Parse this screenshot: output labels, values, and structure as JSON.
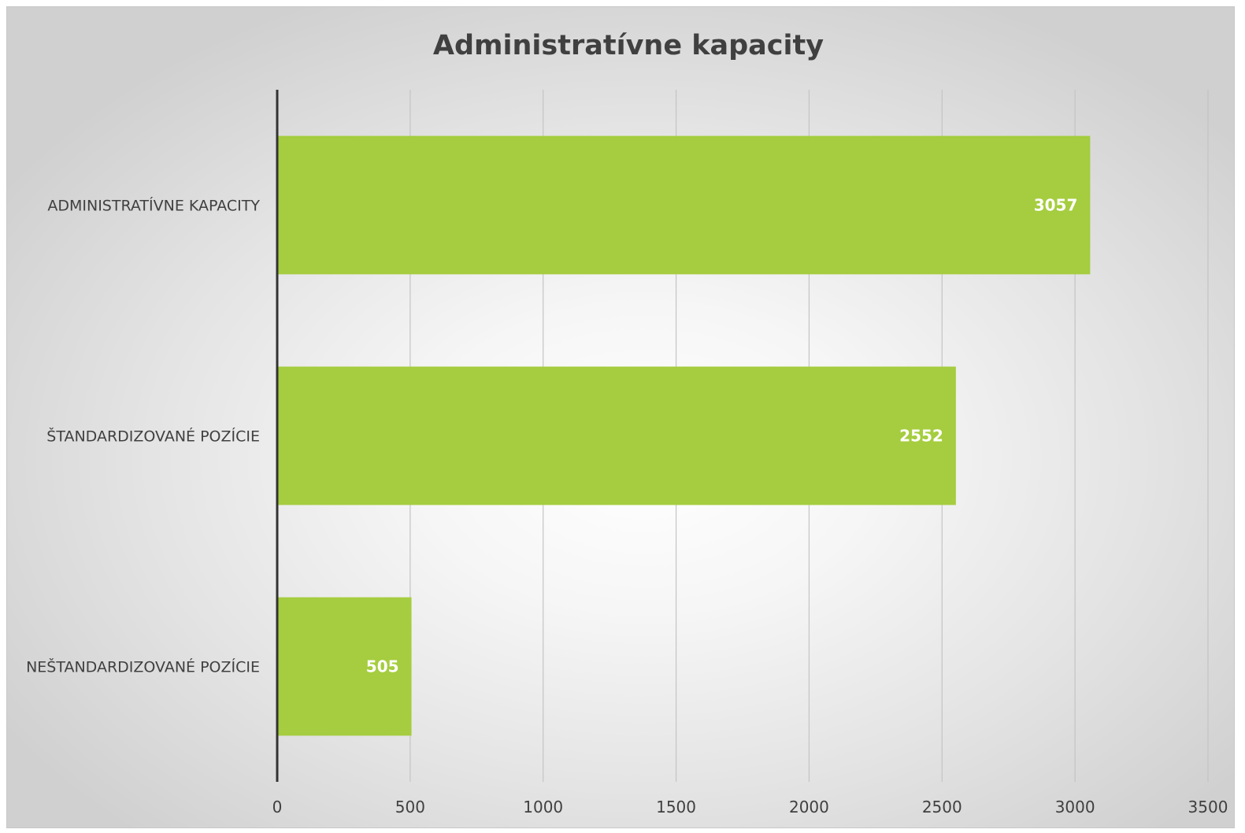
{
  "chart_data": {
    "type": "bar",
    "orientation": "horizontal",
    "title": "Administratívne kapacity",
    "categories": [
      "ADMINISTRATÍVNE KAPACITY",
      "ŠTANDARDIZOVANÉ POZÍCIE",
      "NEŠTANDARDIZOVANÉ POZÍCIE"
    ],
    "values": [
      3057,
      2552,
      505
    ],
    "xlim": [
      0,
      3500
    ],
    "x_ticks": [
      0,
      500,
      1000,
      1500,
      2000,
      2500,
      3000,
      3500
    ],
    "grid": true,
    "legend": "none",
    "bar_color": "#a5cd3f",
    "data_label_color": "#ffffff"
  }
}
